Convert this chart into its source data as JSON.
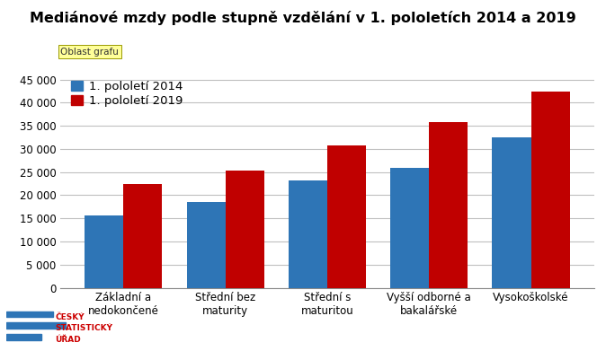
{
  "title": "Mediánové mzdy podle stupně vzdělání v 1. pololetích 2014 a 2019",
  "subtitle": "Oblast grafu",
  "categories": [
    "Základní a\nnedokončené",
    "Střední bez\nmaturity",
    "Střední s\nmaturitou",
    "Vyšší odborné a\nbakalářské",
    "Vysokoškolské"
  ],
  "values_2014": [
    15600,
    18500,
    23100,
    26000,
    32500
  ],
  "values_2019": [
    22400,
    25300,
    30700,
    35700,
    42300
  ],
  "color_2014": "#2E75B6",
  "color_2019": "#C00000",
  "legend_2014": "1. pololetí 2014",
  "legend_2019": "1. pololetí 2019",
  "ylim": [
    0,
    47000
  ],
  "yticks": [
    0,
    5000,
    10000,
    15000,
    20000,
    25000,
    30000,
    35000,
    40000,
    45000
  ],
  "ytick_labels": [
    "0",
    "5 000",
    "10 000",
    "15 000",
    "20 000",
    "25 000",
    "30 000",
    "35 000",
    "40 000",
    "45 000"
  ],
  "bar_width": 0.38,
  "title_fontsize": 11.5,
  "subtitle_fontsize": 7.5,
  "tick_fontsize": 8.5,
  "legend_fontsize": 9.5,
  "background_color": "#FFFFFF",
  "grid_color": "#C0C0C0",
  "logo_text_lines": [
    "ČESKÝ",
    "STATISTICKÝ",
    "ÚŘAD"
  ],
  "logo_color": "#CC0000",
  "logo_bar_color": "#2E75B6"
}
